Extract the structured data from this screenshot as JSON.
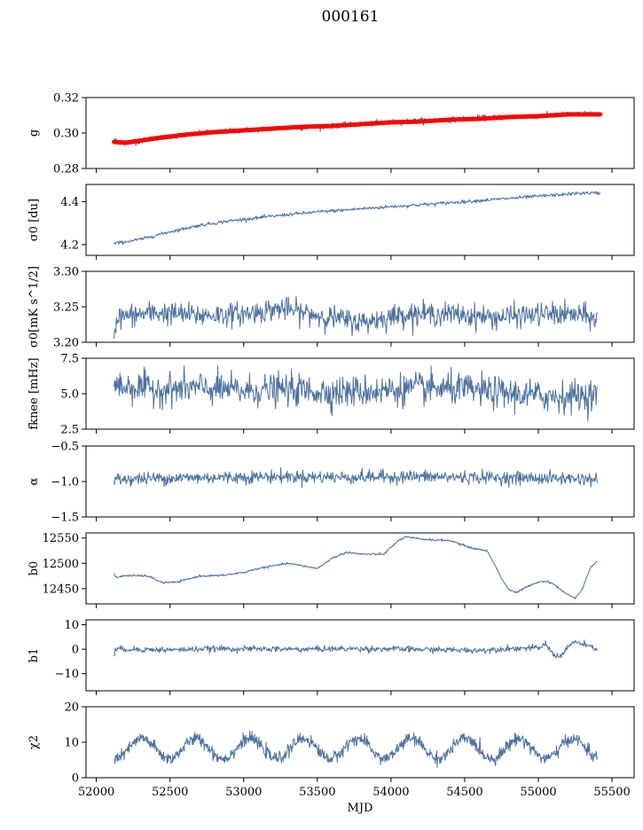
{
  "figure": {
    "title": "000161"
  },
  "chart_data": [
    {
      "type": "line",
      "panel": "g",
      "ylabel": "g",
      "ylim": [
        0.28,
        0.32
      ],
      "yticks": [
        0.28,
        0.3,
        0.32
      ],
      "ytick_labels": [
        "0.28",
        "0.30",
        "0.32"
      ],
      "xlim": [
        51930,
        55650
      ],
      "series": [
        {
          "kind": "noisy",
          "color": "#4c72a0",
          "x": [
            52120,
            52200,
            52400,
            52600,
            52800,
            53000,
            53200,
            53400,
            53600,
            53800,
            54000,
            54200,
            54400,
            54600,
            54800,
            55000,
            55200,
            55400
          ],
          "values": [
            0.296,
            0.294,
            0.297,
            0.299,
            0.3005,
            0.3015,
            0.3025,
            0.303,
            0.304,
            0.305,
            0.306,
            0.307,
            0.3075,
            0.3085,
            0.309,
            0.3095,
            0.3105,
            0.311
          ],
          "noise": 0.0008
        },
        {
          "kind": "smooth",
          "color": "#ff0000",
          "x": [
            52120,
            52200,
            52400,
            52600,
            52800,
            53000,
            53200,
            53400,
            53600,
            53800,
            54000,
            54200,
            54400,
            54600,
            54800,
            55000,
            55200,
            55420
          ],
          "values": [
            0.295,
            0.2945,
            0.297,
            0.299,
            0.3005,
            0.3015,
            0.3025,
            0.3035,
            0.304,
            0.305,
            0.306,
            0.3065,
            0.3075,
            0.308,
            0.309,
            0.3095,
            0.3105,
            0.3105
          ]
        }
      ]
    },
    {
      "type": "line",
      "panel": "sigma0-du",
      "ylabel": "σ0 [du]",
      "ylim": [
        4.15,
        4.48
      ],
      "yticks": [
        4.2,
        4.4
      ],
      "ytick_labels": [
        "4.2",
        "4.4"
      ],
      "xlim": [
        51930,
        55650
      ],
      "series": [
        {
          "kind": "noisy",
          "color": "#4c72a0",
          "x": [
            52120,
            52300,
            52500,
            52700,
            52900,
            53100,
            53300,
            53500,
            53700,
            53900,
            54100,
            54300,
            54500,
            54700,
            54900,
            55100,
            55300,
            55420
          ],
          "values": [
            4.205,
            4.225,
            4.26,
            4.29,
            4.31,
            4.325,
            4.34,
            4.352,
            4.362,
            4.372,
            4.381,
            4.39,
            4.4,
            4.41,
            4.42,
            4.43,
            4.44,
            4.44
          ],
          "noise": 0.004
        }
      ]
    },
    {
      "type": "line",
      "panel": "sigma0-mks",
      "ylabel": "σ0[mK s^1/2]",
      "ylim": [
        3.2,
        3.3
      ],
      "yticks": [
        3.2,
        3.25,
        3.3
      ],
      "ytick_labels": [
        "3.20",
        "3.25",
        "3.30"
      ],
      "xlim": [
        51930,
        55650
      ],
      "series": [
        {
          "kind": "noisy",
          "color": "#4c72a0",
          "x": [
            52120,
            52140,
            52400,
            52700,
            53000,
            53250,
            53500,
            53800,
            54100,
            54400,
            54700,
            54900,
            55100,
            55300,
            55400
          ],
          "values": [
            3.212,
            3.235,
            3.242,
            3.238,
            3.24,
            3.248,
            3.238,
            3.228,
            3.24,
            3.24,
            3.235,
            3.238,
            3.24,
            3.238,
            3.232
          ],
          "noise": 0.008
        }
      ]
    },
    {
      "type": "line",
      "panel": "fknee",
      "ylabel": "fknee [mHz]",
      "ylim": [
        2.5,
        7.5
      ],
      "yticks": [
        2.5,
        5.0,
        7.5
      ],
      "ytick_labels": [
        "2.5",
        "5.0",
        "7.5"
      ],
      "xlim": [
        51930,
        55650
      ],
      "series": [
        {
          "kind": "noisy",
          "color": "#4c72a0",
          "x": [
            52120,
            52400,
            52700,
            53000,
            53300,
            53600,
            53900,
            54200,
            54500,
            54800,
            55100,
            55400
          ],
          "values": [
            5.6,
            5.3,
            5.4,
            5.2,
            5.3,
            5.1,
            5.2,
            5.4,
            5.3,
            5.0,
            4.8,
            4.9
          ],
          "noise": 0.55
        }
      ]
    },
    {
      "type": "line",
      "panel": "alpha",
      "ylabel": "α",
      "ylim": [
        -1.5,
        -0.5
      ],
      "yticks": [
        -1.5,
        -1.0,
        -0.5
      ],
      "ytick_labels": [
        "−1.5",
        "−1.0",
        "−0.5"
      ],
      "xlim": [
        51930,
        55650
      ],
      "series": [
        {
          "kind": "noisy",
          "color": "#4c72a0",
          "x": [
            52120,
            52500,
            52900,
            53300,
            53700,
            54100,
            54500,
            54900,
            55300,
            55400
          ],
          "values": [
            -0.97,
            -0.95,
            -0.94,
            -0.93,
            -0.94,
            -0.93,
            -0.94,
            -0.95,
            -0.96,
            -0.97
          ],
          "noise": 0.045
        }
      ]
    },
    {
      "type": "line",
      "panel": "b0",
      "ylabel": "b0",
      "ylim": [
        12420,
        12560
      ],
      "yticks": [
        12450,
        12500,
        12550
      ],
      "ytick_labels": [
        "12450",
        "12500",
        "12550"
      ],
      "xlim": [
        51930,
        55650
      ],
      "series": [
        {
          "kind": "noisy",
          "color": "#4c72a0",
          "x": [
            52120,
            52130,
            52200,
            52350,
            52450,
            52550,
            52700,
            52850,
            53000,
            53100,
            53300,
            53500,
            53600,
            53700,
            53800,
            53950,
            54050,
            54100,
            54200,
            54300,
            54400,
            54550,
            54650,
            54700,
            54750,
            54800,
            54850,
            54900,
            54950,
            55000,
            55050,
            55100,
            55150,
            55200,
            55250,
            55300,
            55350,
            55400
          ],
          "values": [
            12480,
            12472,
            12476,
            12475,
            12462,
            12463,
            12475,
            12476,
            12482,
            12490,
            12500,
            12490,
            12510,
            12522,
            12518,
            12518,
            12545,
            12552,
            12548,
            12546,
            12545,
            12530,
            12525,
            12500,
            12470,
            12448,
            12442,
            12450,
            12458,
            12463,
            12465,
            12460,
            12448,
            12438,
            12432,
            12450,
            12490,
            12505
          ],
          "noise": 1.0
        }
      ]
    },
    {
      "type": "line",
      "panel": "b1",
      "ylabel": "b1",
      "ylim": [
        -17,
        12
      ],
      "yticks": [
        -10,
        0,
        10
      ],
      "ytick_labels": [
        "−10",
        "0",
        "10"
      ],
      "xlim": [
        51930,
        55650
      ],
      "series": [
        {
          "kind": "noisy",
          "color": "#4c72a0",
          "x": [
            52120,
            52130,
            52200,
            52500,
            52800,
            53100,
            53400,
            53700,
            54000,
            54300,
            54600,
            54800,
            55000,
            55050,
            55100,
            55150,
            55200,
            55250,
            55300,
            55350,
            55400
          ],
          "values": [
            -3,
            0,
            0,
            -0.3,
            0.2,
            0.1,
            0,
            0.2,
            0.1,
            -0.2,
            -0.5,
            0.3,
            0.5,
            2,
            -2,
            -3,
            1,
            3,
            2,
            1,
            0
          ],
          "noise": 0.6
        }
      ]
    },
    {
      "type": "line",
      "panel": "chi2",
      "ylabel": "χ2",
      "xlabel": "MJD",
      "ylim": [
        0,
        20
      ],
      "yticks": [
        0,
        10,
        20
      ],
      "ytick_labels": [
        "0",
        "10",
        "20"
      ],
      "xlim": [
        51930,
        55650
      ],
      "xticks": [
        52000,
        52500,
        53000,
        53500,
        54000,
        54500,
        55000,
        55500
      ],
      "xtick_labels": [
        "52000",
        "52500",
        "53000",
        "53500",
        "54000",
        "54500",
        "55000",
        "55500"
      ],
      "series": [
        {
          "kind": "periodic",
          "color": "#4c72a0",
          "xstart": 52120,
          "xend": 55400,
          "mean": 8.2,
          "amplitude": 2.8,
          "period": 365.25,
          "phase_mjd": 52220,
          "noise": 1.2
        }
      ]
    }
  ]
}
